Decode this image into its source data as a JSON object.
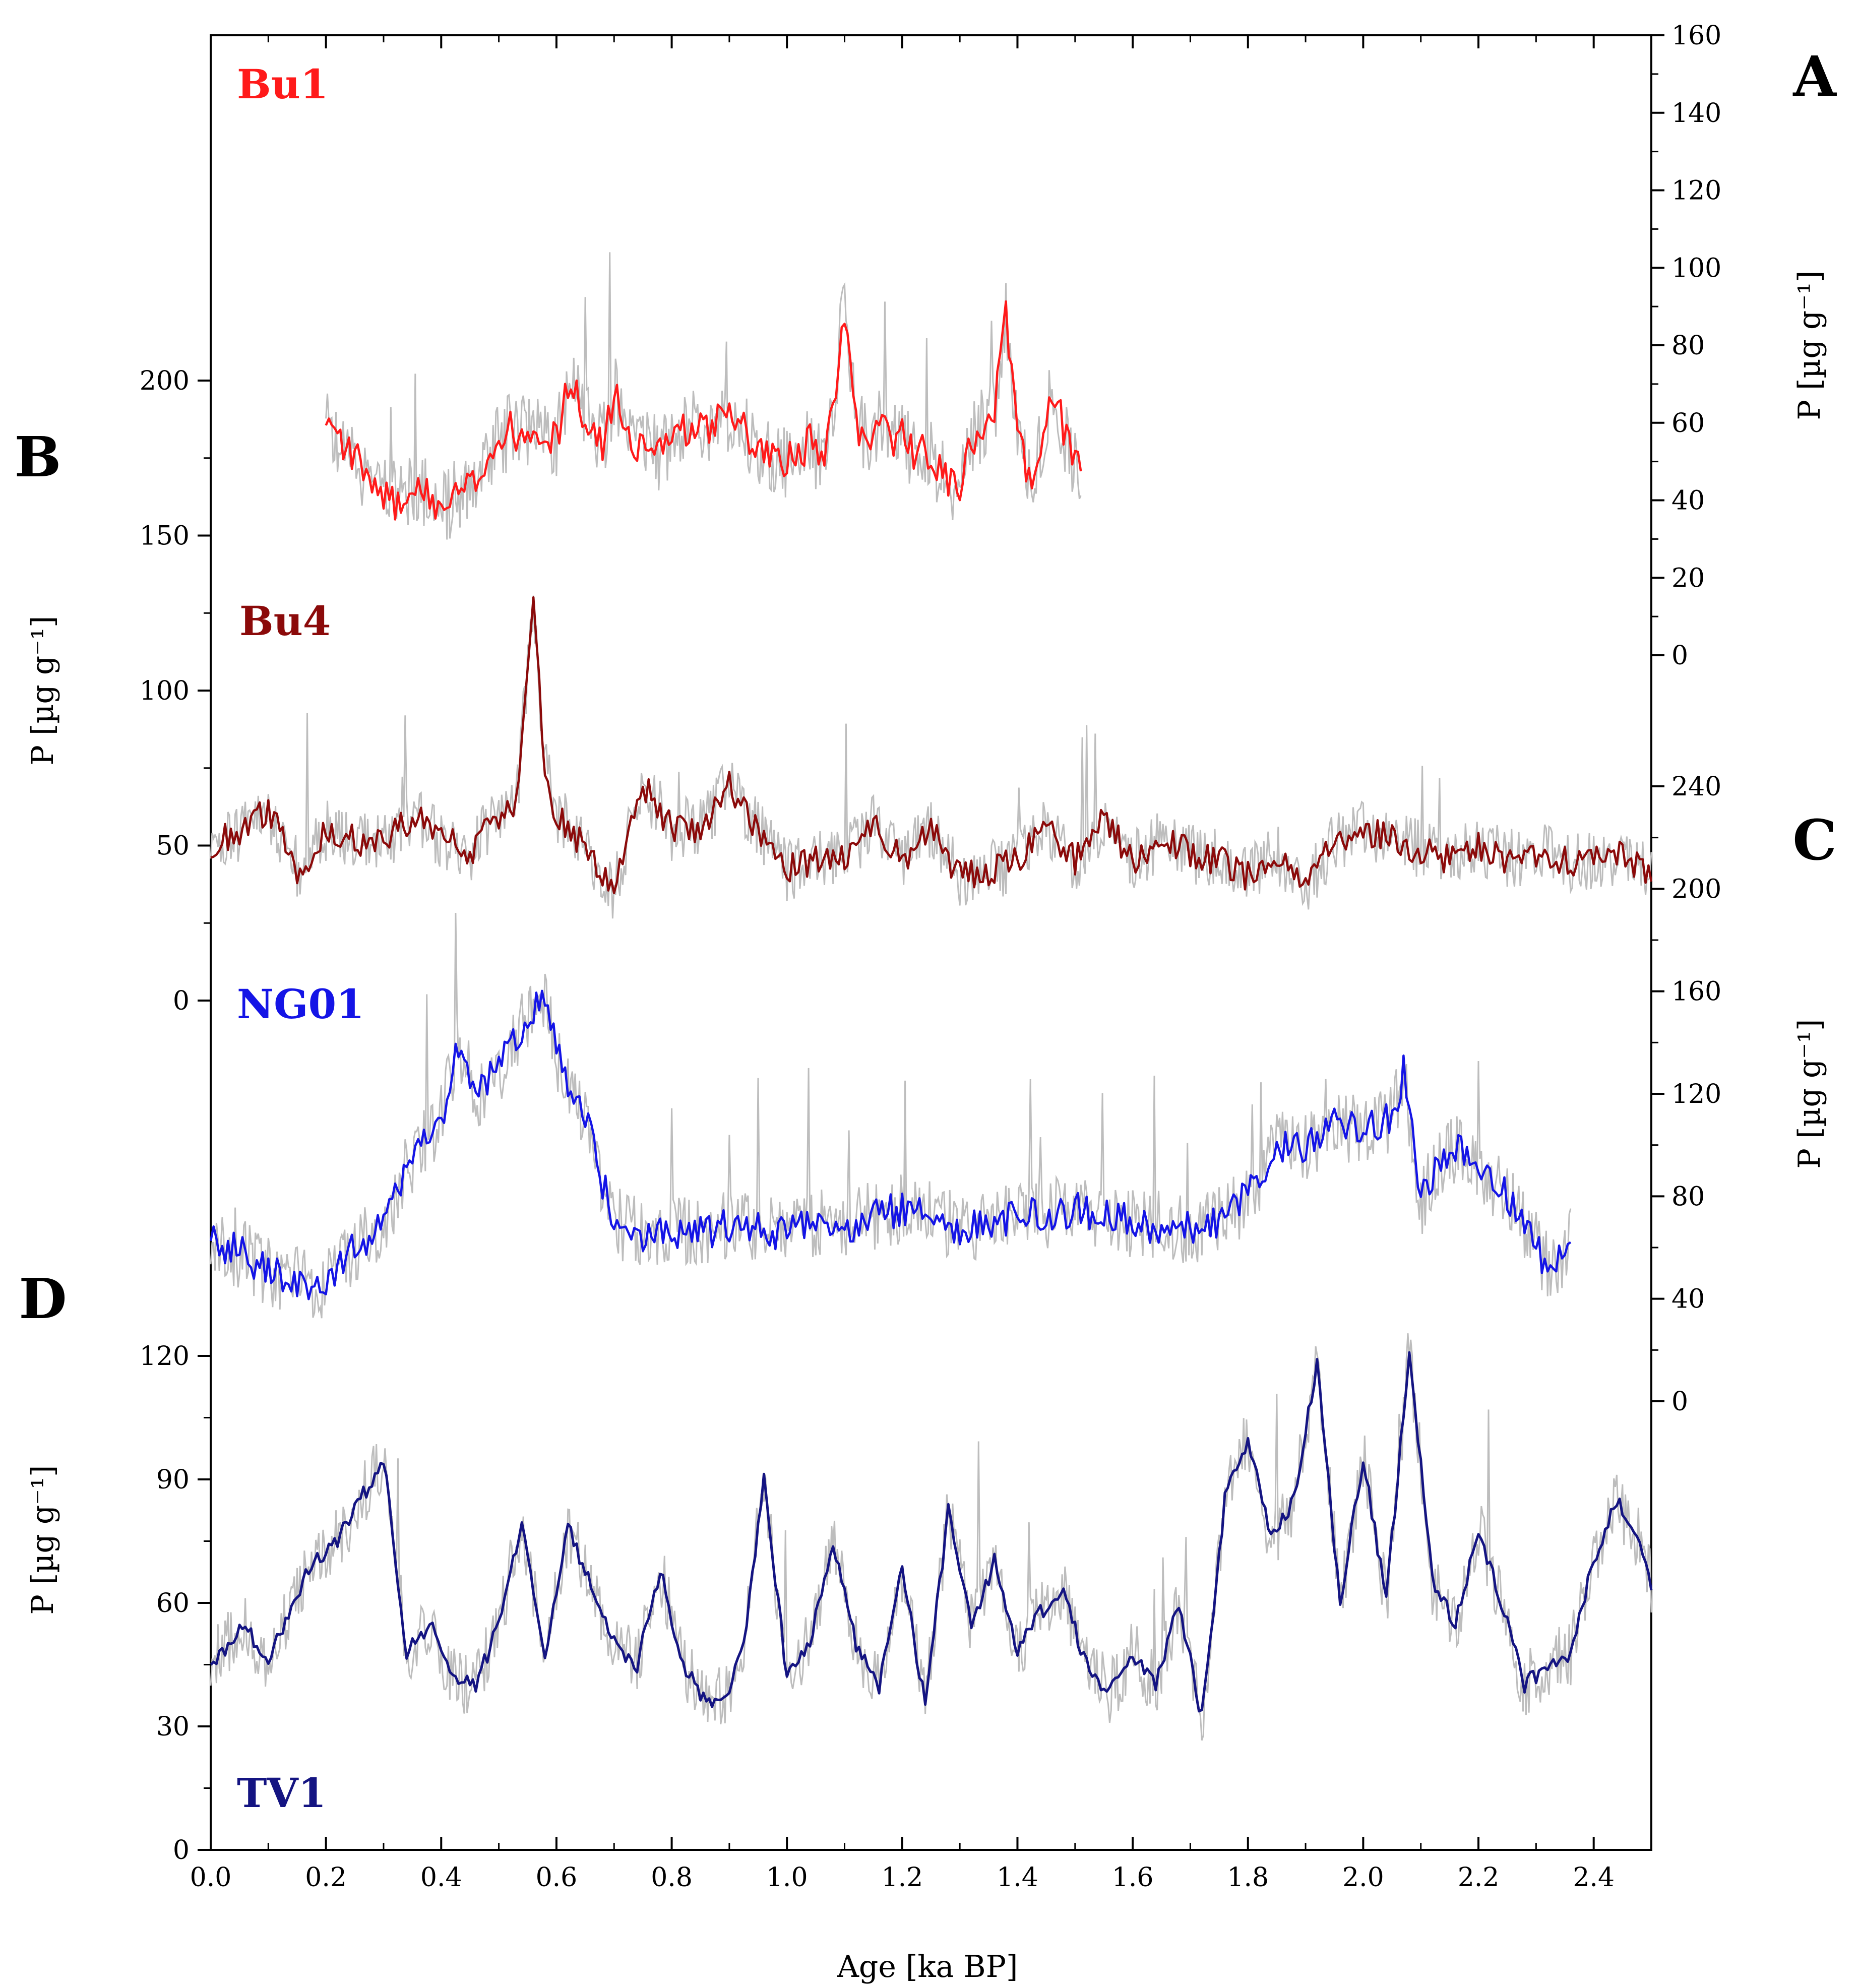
{
  "figure": {
    "x_axis": {
      "label": "Age [ka BP]",
      "min": 0.0,
      "max": 2.5,
      "ticks": [
        "0.0",
        "0.2",
        "0.4",
        "0.6",
        "0.8",
        "1.0",
        "1.2",
        "1.4",
        "1.6",
        "1.8",
        "2.0",
        "2.2",
        "2.4"
      ]
    },
    "panel_letters": [
      "A",
      "B",
      "C",
      "D"
    ],
    "unit_label": "P [µg g⁻¹]",
    "colors": {
      "raw": "#bdbdbd",
      "Bu1": "#ff1a1a",
      "Bu4": "#8b0a0a",
      "NG01": "#1414e6",
      "TV1": "#141482"
    }
  },
  "chart_data": [
    {
      "panel": "A",
      "series": "Bu1",
      "type": "line",
      "y_axis_side": "right",
      "ylim": [
        0,
        160
      ],
      "yticks": [
        "0",
        "20",
        "40",
        "60",
        "80",
        "100",
        "120",
        "140",
        "160"
      ],
      "ylabel": "P [µg g⁻¹]",
      "x_range": [
        0.2,
        1.51
      ],
      "x": [
        0.2,
        0.22,
        0.24,
        0.26,
        0.28,
        0.3,
        0.32,
        0.34,
        0.36,
        0.38,
        0.4,
        0.42,
        0.44,
        0.46,
        0.48,
        0.5,
        0.52,
        0.54,
        0.56,
        0.58,
        0.6,
        0.62,
        0.64,
        0.66,
        0.68,
        0.7,
        0.72,
        0.74,
        0.76,
        0.78,
        0.8,
        0.82,
        0.84,
        0.86,
        0.88,
        0.9,
        0.92,
        0.94,
        0.96,
        0.98,
        1.0,
        1.02,
        1.04,
        1.06,
        1.08,
        1.1,
        1.12,
        1.14,
        1.16,
        1.18,
        1.2,
        1.22,
        1.24,
        1.26,
        1.28,
        1.3,
        1.32,
        1.34,
        1.36,
        1.38,
        1.4,
        1.42,
        1.44,
        1.46,
        1.48,
        1.5
      ],
      "values": [
        58,
        55,
        53,
        49,
        45,
        42,
        40,
        41,
        43,
        40,
        38,
        40,
        42,
        45,
        52,
        55,
        58,
        57,
        60,
        58,
        55,
        70,
        65,
        58,
        55,
        68,
        60,
        53,
        55,
        52,
        53,
        58,
        60,
        58,
        60,
        62,
        60,
        55,
        53,
        52,
        50,
        52,
        55,
        50,
        65,
        90,
        60,
        55,
        60,
        55,
        58,
        52,
        54,
        48,
        45,
        42,
        55,
        60,
        62,
        90,
        58,
        45,
        55,
        70,
        58,
        48
      ]
    },
    {
      "panel": "B",
      "series": "Bu4",
      "type": "line",
      "y_axis_side": "left",
      "ylim": [
        0,
        200
      ],
      "yticks": [
        "0",
        "50",
        "100",
        "150",
        "200"
      ],
      "ylabel": "P [µg g⁻¹]",
      "x_range": [
        0.0,
        2.5
      ],
      "x": [
        0.0,
        0.05,
        0.1,
        0.15,
        0.2,
        0.25,
        0.3,
        0.35,
        0.4,
        0.45,
        0.5,
        0.53,
        0.56,
        0.58,
        0.6,
        0.65,
        0.7,
        0.75,
        0.8,
        0.85,
        0.9,
        0.95,
        1.0,
        1.05,
        1.1,
        1.15,
        1.2,
        1.25,
        1.3,
        1.35,
        1.4,
        1.45,
        1.5,
        1.55,
        1.6,
        1.65,
        1.7,
        1.75,
        1.8,
        1.85,
        1.9,
        1.95,
        2.0,
        2.05,
        2.1,
        2.15,
        2.2,
        2.25,
        2.3,
        2.35,
        2.4,
        2.45,
        2.5
      ],
      "values": [
        50,
        55,
        62,
        40,
        55,
        52,
        50,
        60,
        52,
        48,
        60,
        62,
        130,
        75,
        60,
        50,
        35,
        70,
        55,
        55,
        70,
        55,
        42,
        45,
        45,
        58,
        45,
        55,
        40,
        42,
        45,
        55,
        45,
        58,
        45,
        52,
        48,
        45,
        40,
        48,
        35,
        52,
        55,
        52,
        48,
        45,
        50,
        45,
        48,
        45,
        45,
        48,
        40
      ]
    },
    {
      "panel": "C",
      "series": "NG01",
      "type": "line",
      "y_axis_side": "right",
      "ylim": [
        0,
        240
      ],
      "yticks": [
        "0",
        "40",
        "80",
        "120",
        "160",
        "200",
        "240"
      ],
      "ylabel": "P [µg g⁻¹]",
      "x_range": [
        0.0,
        2.36
      ],
      "x": [
        0.0,
        0.05,
        0.1,
        0.15,
        0.2,
        0.25,
        0.3,
        0.35,
        0.4,
        0.43,
        0.46,
        0.5,
        0.55,
        0.58,
        0.6,
        0.65,
        0.7,
        0.75,
        0.8,
        0.85,
        0.9,
        0.95,
        1.0,
        1.05,
        1.1,
        1.15,
        1.2,
        1.25,
        1.3,
        1.35,
        1.4,
        1.45,
        1.5,
        1.55,
        1.6,
        1.65,
        1.7,
        1.75,
        1.8,
        1.85,
        1.9,
        1.95,
        2.0,
        2.05,
        2.07,
        2.1,
        2.15,
        2.2,
        2.25,
        2.3,
        2.33,
        2.36
      ],
      "values": [
        62,
        58,
        50,
        48,
        45,
        60,
        68,
        95,
        110,
        140,
        120,
        130,
        150,
        160,
        135,
        110,
        70,
        65,
        67,
        66,
        68,
        67,
        65,
        70,
        68,
        72,
        75,
        72,
        68,
        70,
        72,
        73,
        75,
        72,
        70,
        68,
        67,
        70,
        80,
        100,
        98,
        108,
        105,
        110,
        130,
        78,
        100,
        92,
        80,
        60,
        50,
        62
      ]
    },
    {
      "panel": "D",
      "series": "TV1",
      "type": "line",
      "y_axis_side": "left",
      "ylim": [
        0,
        120
      ],
      "yticks": [
        "0",
        "30",
        "60",
        "90",
        "120"
      ],
      "ylabel": "P [µg g⁻¹]",
      "x_range": [
        0.0,
        2.5
      ],
      "x": [
        0.0,
        0.03,
        0.06,
        0.1,
        0.14,
        0.18,
        0.22,
        0.26,
        0.3,
        0.34,
        0.38,
        0.42,
        0.46,
        0.5,
        0.54,
        0.58,
        0.62,
        0.66,
        0.7,
        0.74,
        0.78,
        0.82,
        0.86,
        0.9,
        0.93,
        0.96,
        1.0,
        1.04,
        1.08,
        1.12,
        1.16,
        1.2,
        1.24,
        1.28,
        1.32,
        1.36,
        1.4,
        1.44,
        1.48,
        1.52,
        1.56,
        1.6,
        1.64,
        1.68,
        1.72,
        1.76,
        1.8,
        1.84,
        1.88,
        1.92,
        1.96,
        2.0,
        2.04,
        2.08,
        2.12,
        2.16,
        2.2,
        2.24,
        2.28,
        2.32,
        2.36,
        2.4,
        2.44,
        2.48,
        2.5
      ],
      "values": [
        45,
        50,
        55,
        45,
        60,
        70,
        75,
        85,
        95,
        48,
        55,
        42,
        40,
        55,
        80,
        48,
        78,
        65,
        50,
        45,
        68,
        45,
        35,
        38,
        55,
        90,
        42,
        50,
        75,
        50,
        40,
        68,
        35,
        82,
        55,
        70,
        48,
        58,
        62,
        45,
        38,
        48,
        40,
        60,
        32,
        85,
        100,
        75,
        85,
        118,
        60,
        95,
        60,
        122,
        65,
        55,
        78,
        60,
        40,
        45,
        48,
        70,
        85,
        75,
        65
      ]
    }
  ]
}
